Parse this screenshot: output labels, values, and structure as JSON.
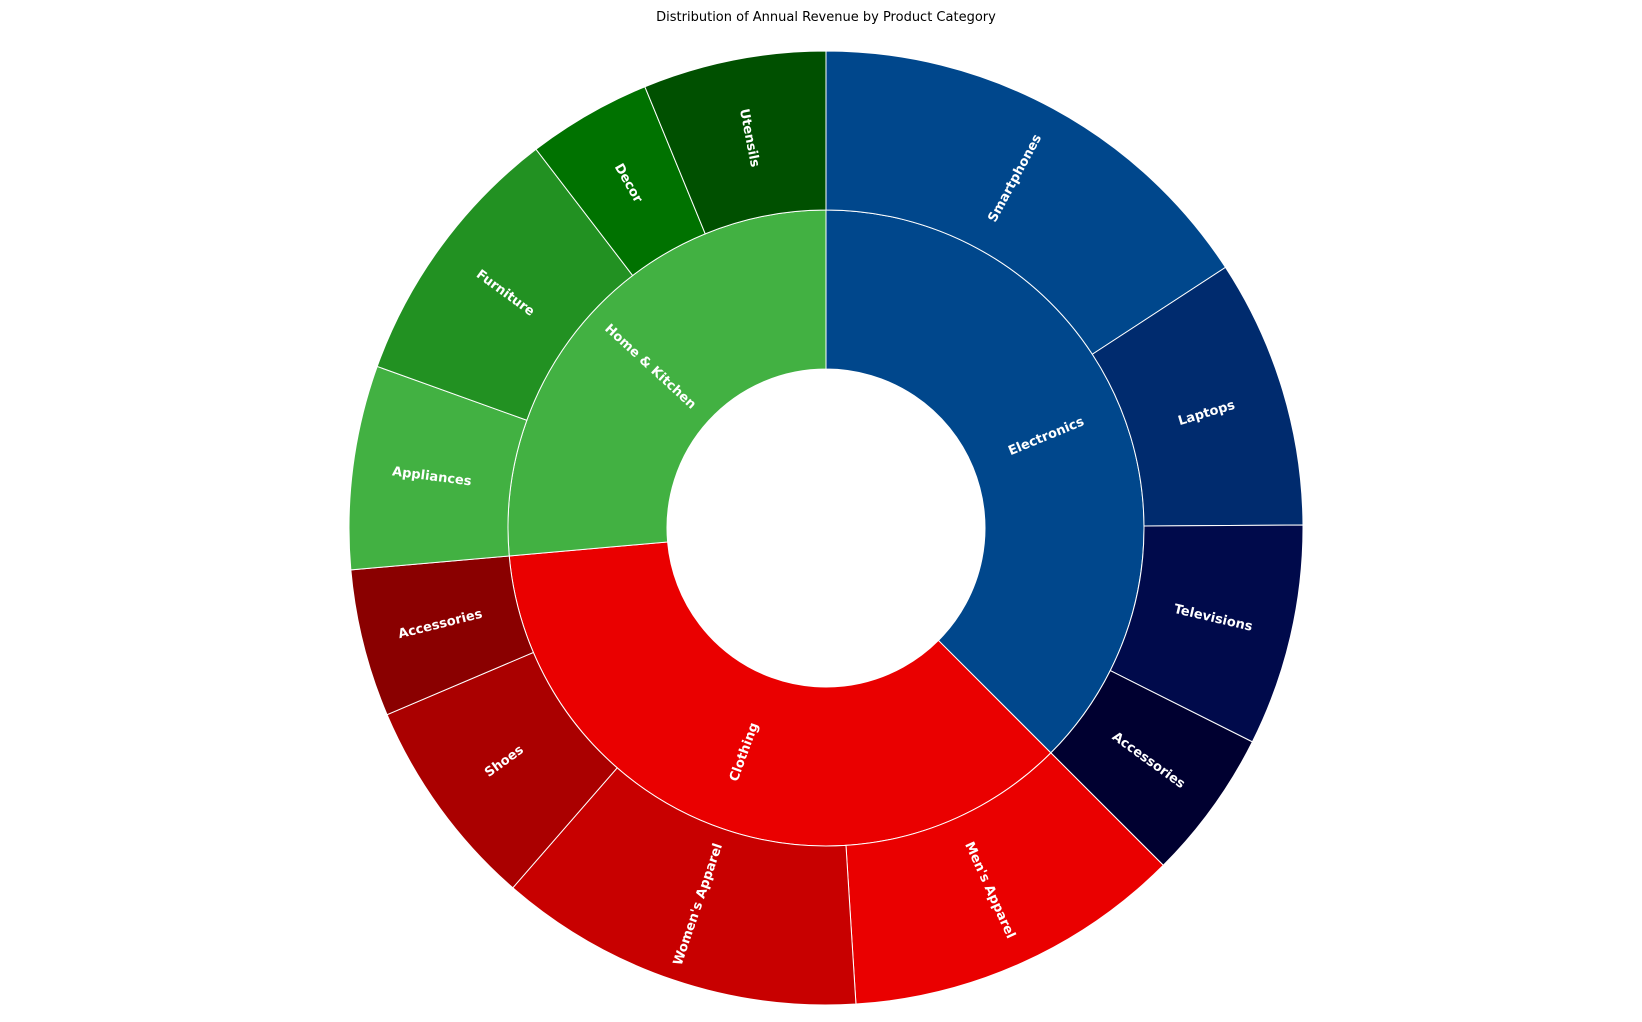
{
  "chart_data": {
    "type": "sunburst",
    "title": "Distribution of Annual Revenue by Product Category",
    "start": "top",
    "direction": "clockwise",
    "categories": [
      {
        "name": "Electronics",
        "color": "#00478c",
        "value": 37.5,
        "children": [
          {
            "name": "Smartphones",
            "value": 15.8,
            "color": "#00478c"
          },
          {
            "name": "Laptops",
            "value": 9.1,
            "color": "#002b6e"
          },
          {
            "name": "Televisions",
            "value": 7.5,
            "color": "#000a4b"
          },
          {
            "name": "Accessories",
            "value": 5.1,
            "color": "#000030"
          }
        ]
      },
      {
        "name": "Clothing",
        "color": "#ea0000",
        "value": 36.1,
        "children": [
          {
            "name": "Men's Apparel",
            "value": 11.5,
            "color": "#ea0000"
          },
          {
            "name": "Women's Apparel",
            "value": 12.4,
            "color": "#c80000"
          },
          {
            "name": "Shoes",
            "value": 7.2,
            "color": "#aa0000"
          },
          {
            "name": "Accessories",
            "value": 5.0,
            "color": "#8a0000"
          }
        ]
      },
      {
        "name": "Home & Kitchen",
        "color": "#42b142",
        "value": 26.4,
        "children": [
          {
            "name": "Appliances",
            "value": 6.9,
            "color": "#42b142"
          },
          {
            "name": "Furniture",
            "value": 9.1,
            "color": "#229122"
          },
          {
            "name": "Decor",
            "value": 4.2,
            "color": "#007200"
          },
          {
            "name": "Utensils",
            "value": 6.2,
            "color": "#005000"
          }
        ]
      }
    ]
  }
}
